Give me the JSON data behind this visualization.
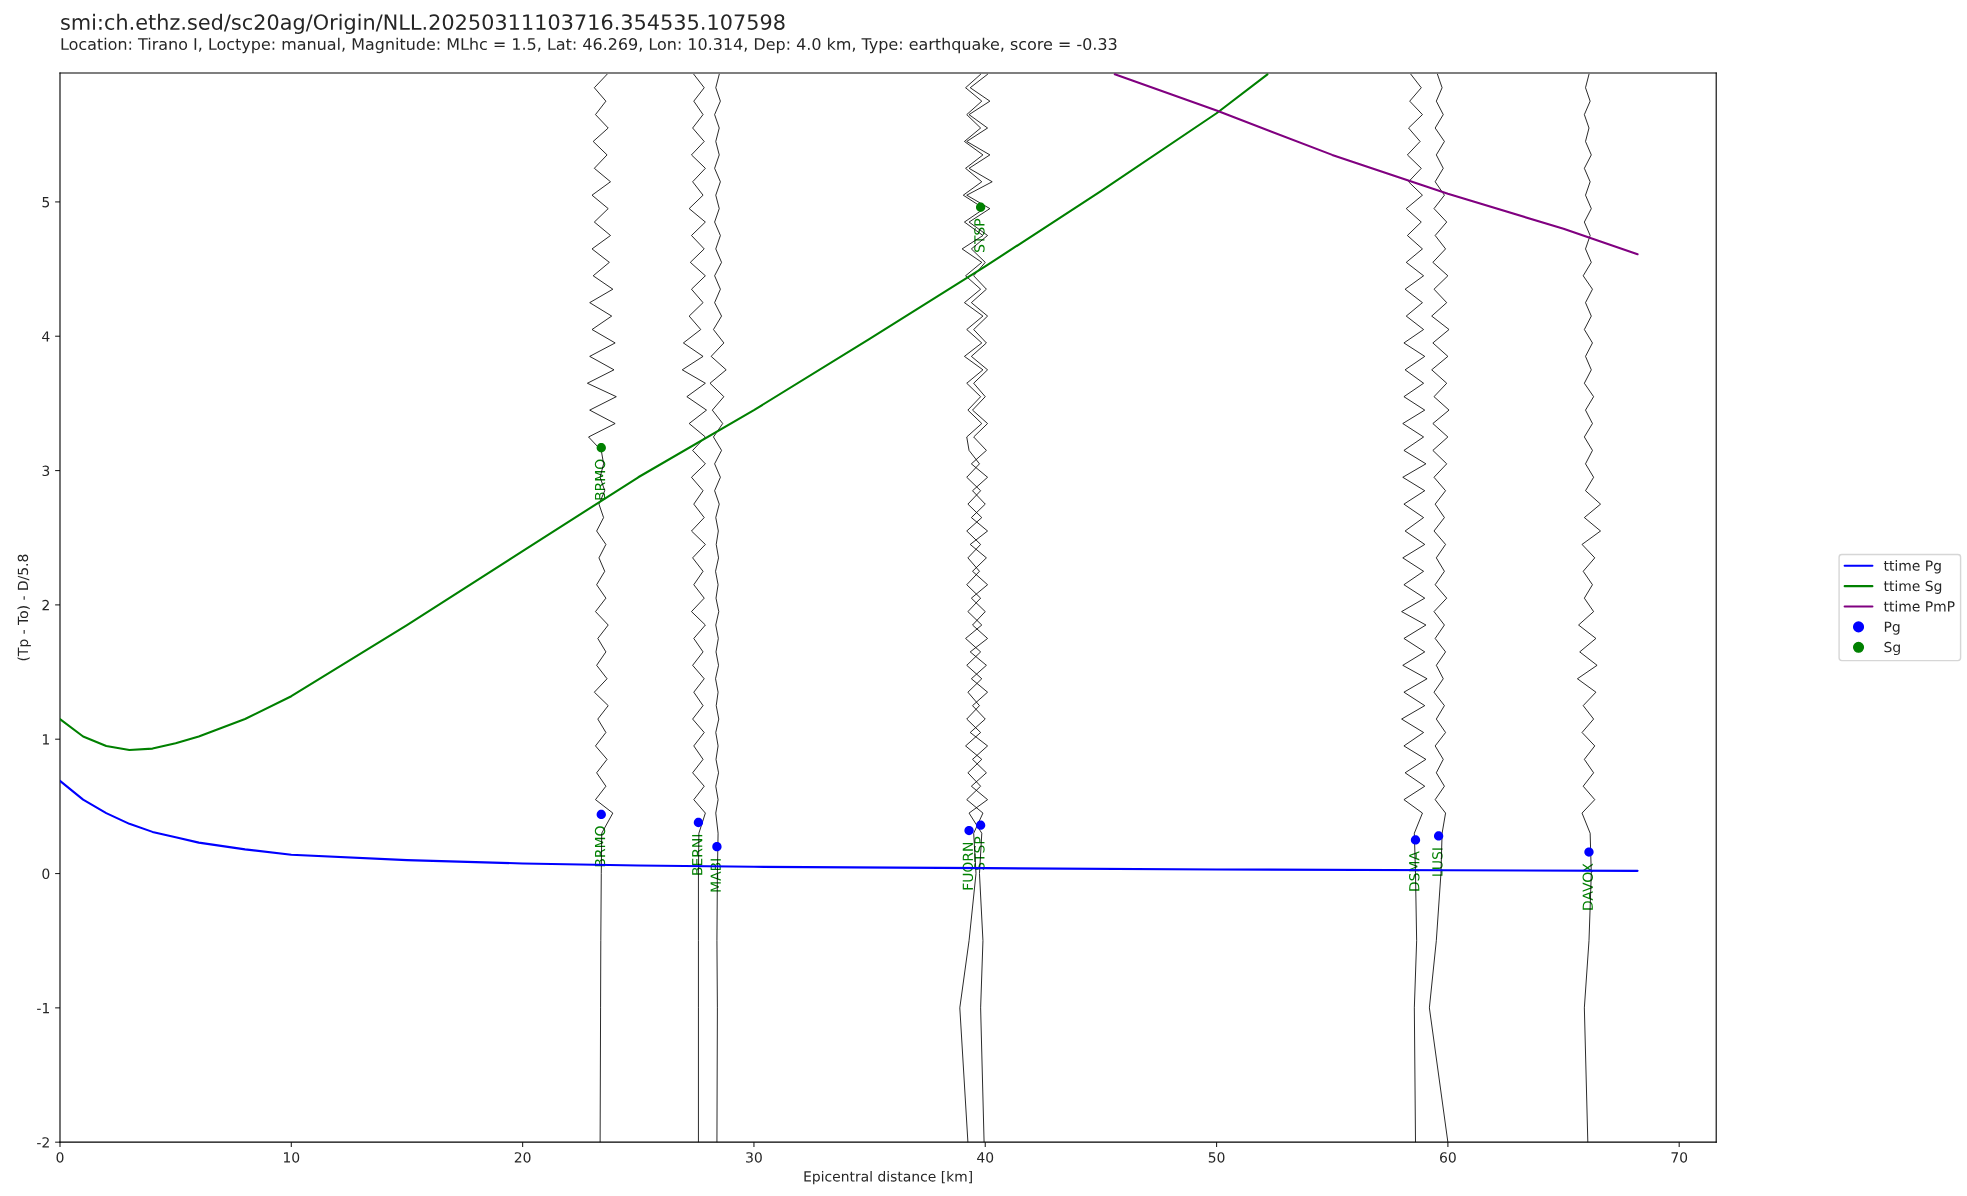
{
  "chart_data": {
    "type": "line",
    "title": "smi:ch.ethz.sed/sc20ag/Origin/NLL.20250311103716.354535.107598",
    "subtitle": "Location: Tirano I, Loctype: manual, Magnitude: MLhc = 1.5, Lat: 46.269, Lon: 10.314, Dep: 4.0 km, Type: earthquake, score = -0.33",
    "xlabel": "Epicentral distance [km]",
    "ylabel": "(Tp - To) - D/5.8",
    "xlim": [
      0,
      71.6
    ],
    "ylim": [
      -2,
      5.96
    ],
    "xticks": [
      0,
      10,
      20,
      30,
      40,
      50,
      60,
      70
    ],
    "yticks": [
      -2,
      -1,
      0,
      1,
      2,
      3,
      4,
      5
    ],
    "legend": "right",
    "grid": false,
    "series": [
      {
        "type": "line",
        "color": "#000000",
        "x": [
          23.35,
          23.37,
          23.38,
          23.4,
          23.42,
          23.9,
          23.15,
          23.6,
          23.2,
          23.65,
          23.15,
          23.6,
          23.25,
          23.7,
          23.1,
          23.65,
          23.2,
          23.6,
          23.25,
          23.7,
          23.15,
          23.6,
          23.2,
          23.55,
          23.3,
          23.6,
          23.2,
          23.5,
          23.3,
          23.55,
          23.35,
          23.5,
          23.4,
          22.85,
          24.0,
          22.9,
          24.05,
          22.8,
          23.95,
          22.9,
          24.0,
          23.0,
          23.85,
          22.9,
          23.9,
          23.05,
          23.75,
          23.0,
          23.8,
          23.1,
          23.7,
          23.0,
          23.8,
          23.1,
          23.65,
          23.05,
          23.7,
          23.15,
          23.6,
          23.1,
          23.65
        ],
        "values": [
          -2,
          -1,
          -0.5,
          0,
          0.3,
          0.45,
          0.55,
          0.65,
          0.75,
          0.85,
          0.95,
          1.05,
          1.15,
          1.25,
          1.35,
          1.45,
          1.55,
          1.65,
          1.75,
          1.85,
          1.95,
          2.05,
          2.15,
          2.25,
          2.35,
          2.45,
          2.55,
          2.65,
          2.75,
          2.85,
          2.95,
          3.05,
          3.15,
          3.25,
          3.35,
          3.45,
          3.55,
          3.65,
          3.75,
          3.85,
          3.95,
          4.05,
          4.15,
          4.25,
          4.35,
          4.45,
          4.55,
          4.65,
          4.75,
          4.85,
          4.95,
          5.05,
          5.15,
          5.25,
          5.35,
          5.45,
          5.55,
          5.65,
          5.75,
          5.85,
          5.95
        ]
      },
      {
        "type": "line",
        "color": "#000000",
        "x": [
          27.6,
          27.6,
          27.6,
          27.6,
          27.62,
          27.9,
          27.4,
          27.85,
          27.35,
          27.8,
          27.4,
          27.85,
          27.35,
          27.8,
          27.4,
          27.85,
          27.35,
          27.8,
          27.4,
          27.9,
          27.3,
          27.85,
          27.4,
          27.8,
          27.35,
          27.9,
          27.3,
          27.85,
          27.4,
          27.8,
          27.3,
          27.9,
          27.35,
          27.9,
          27.2,
          27.95,
          27.1,
          27.9,
          26.9,
          27.8,
          26.95,
          27.7,
          27.2,
          27.8,
          27.3,
          27.9,
          27.25,
          27.85,
          27.3,
          27.9,
          27.2,
          27.8,
          27.35,
          27.9,
          27.3,
          27.85,
          27.35,
          27.8,
          27.4,
          27.85,
          27.4
        ],
        "values": [
          -2,
          -1,
          -0.5,
          0,
          0.3,
          0.45,
          0.55,
          0.65,
          0.75,
          0.85,
          0.95,
          1.05,
          1.15,
          1.25,
          1.35,
          1.45,
          1.55,
          1.65,
          1.75,
          1.85,
          1.95,
          2.05,
          2.15,
          2.25,
          2.35,
          2.45,
          2.55,
          2.65,
          2.75,
          2.85,
          2.95,
          3.05,
          3.15,
          3.25,
          3.35,
          3.45,
          3.55,
          3.65,
          3.75,
          3.85,
          3.95,
          4.05,
          4.15,
          4.25,
          4.35,
          4.45,
          4.55,
          4.65,
          4.75,
          4.85,
          4.95,
          5.05,
          5.15,
          5.25,
          5.35,
          5.45,
          5.55,
          5.65,
          5.75,
          5.85,
          5.95
        ]
      },
      {
        "type": "line",
        "color": "#000000",
        "x": [
          28.4,
          28.42,
          28.4,
          28.42,
          28.45,
          28.35,
          28.45,
          28.35,
          28.47,
          28.36,
          28.45,
          28.35,
          28.48,
          28.37,
          28.45,
          28.34,
          28.47,
          28.36,
          28.46,
          28.35,
          28.48,
          28.36,
          28.45,
          28.34,
          28.47,
          28.37,
          28.46,
          28.35,
          28.5,
          28.3,
          28.55,
          28.3,
          28.6,
          28.25,
          28.65,
          28.2,
          28.7,
          28.1,
          28.8,
          28.15,
          28.7,
          28.25,
          28.6,
          28.3,
          28.55,
          28.3,
          28.6,
          28.35,
          28.55,
          28.3,
          28.5,
          28.35,
          28.55,
          28.3,
          28.5,
          28.35,
          28.5,
          28.3,
          28.55,
          28.35,
          28.5
        ],
        "values": [
          -2,
          -1,
          -0.5,
          0,
          0.3,
          0.45,
          0.55,
          0.65,
          0.75,
          0.85,
          0.95,
          1.05,
          1.15,
          1.25,
          1.35,
          1.45,
          1.55,
          1.65,
          1.75,
          1.85,
          1.95,
          2.05,
          2.15,
          2.25,
          2.35,
          2.45,
          2.55,
          2.65,
          2.75,
          2.85,
          2.95,
          3.05,
          3.15,
          3.25,
          3.35,
          3.45,
          3.55,
          3.65,
          3.75,
          3.85,
          3.95,
          4.05,
          4.15,
          4.25,
          4.35,
          4.45,
          4.55,
          4.65,
          4.75,
          4.85,
          4.95,
          5.05,
          5.15,
          5.25,
          5.35,
          5.45,
          5.55,
          5.65,
          5.75,
          5.85,
          5.95
        ]
      },
      {
        "type": "line",
        "color": "#000000",
        "x": [
          39.25,
          38.9,
          39.3,
          39.6,
          39.5,
          39.9,
          39.2,
          39.8,
          39.25,
          39.85,
          39.15,
          39.8,
          39.2,
          39.75,
          39.25,
          39.85,
          39.2,
          39.8,
          39.15,
          39.85,
          39.25,
          39.8,
          39.2,
          39.75,
          39.25,
          39.8,
          39.2,
          39.85,
          39.25,
          39.8,
          39.2,
          39.75,
          39.3,
          39.2,
          39.85,
          39.25,
          39.8,
          39.2,
          39.9,
          39.1,
          39.85,
          39.2,
          39.9,
          39.1,
          39.8,
          39.15,
          39.85,
          39.0,
          39.9,
          39.1,
          39.95,
          39.05,
          39.85,
          39.15,
          39.9,
          39.1,
          39.8,
          39.2,
          39.85,
          39.15,
          39.8
        ],
        "values": [
          -2,
          -1,
          -0.5,
          0,
          0.3,
          0.45,
          0.55,
          0.65,
          0.75,
          0.85,
          0.95,
          1.05,
          1.15,
          1.25,
          1.35,
          1.45,
          1.55,
          1.65,
          1.75,
          1.85,
          1.95,
          2.05,
          2.15,
          2.25,
          2.35,
          2.45,
          2.55,
          2.65,
          2.75,
          2.85,
          2.95,
          3.05,
          3.15,
          3.25,
          3.35,
          3.45,
          3.55,
          3.65,
          3.75,
          3.85,
          3.95,
          4.05,
          4.15,
          4.25,
          4.35,
          4.45,
          4.55,
          4.65,
          4.75,
          4.85,
          4.95,
          5.05,
          5.15,
          5.25,
          5.35,
          5.45,
          5.55,
          5.65,
          5.75,
          5.85,
          5.95
        ]
      },
      {
        "type": "line",
        "color": "#000000",
        "x": [
          39.95,
          39.8,
          39.9,
          39.75,
          39.85,
          39.3,
          40.1,
          39.4,
          40.05,
          39.45,
          40.1,
          39.35,
          40.0,
          39.45,
          40.1,
          39.4,
          40.05,
          39.35,
          40.1,
          39.45,
          40.0,
          39.4,
          40.1,
          39.45,
          40.05,
          39.35,
          40.1,
          39.4,
          40.0,
          39.45,
          40.1,
          39.4,
          40.05,
          39.5,
          40.1,
          39.45,
          40.0,
          39.5,
          40.1,
          39.4,
          40.05,
          39.5,
          40.1,
          39.4,
          40.05,
          39.5,
          40.0,
          39.4,
          40.1,
          39.3,
          40.2,
          39.2,
          40.3,
          39.3,
          40.2,
          39.2,
          40.1,
          39.3,
          40.2,
          39.35,
          40.1
        ],
        "values": [
          -2,
          -1,
          -0.5,
          0,
          0.3,
          0.45,
          0.55,
          0.65,
          0.75,
          0.85,
          0.95,
          1.05,
          1.15,
          1.25,
          1.35,
          1.45,
          1.55,
          1.65,
          1.75,
          1.85,
          1.95,
          2.05,
          2.15,
          2.25,
          2.35,
          2.45,
          2.55,
          2.65,
          2.75,
          2.85,
          2.95,
          3.05,
          3.15,
          3.25,
          3.35,
          3.45,
          3.55,
          3.65,
          3.75,
          3.85,
          3.95,
          4.05,
          4.15,
          4.25,
          4.35,
          4.45,
          4.55,
          4.65,
          4.75,
          4.85,
          4.95,
          5.05,
          5.15,
          5.25,
          5.35,
          5.45,
          5.55,
          5.65,
          5.75,
          5.85,
          5.95
        ]
      },
      {
        "type": "line",
        "color": "#000000",
        "x": [
          58.6,
          58.55,
          58.65,
          58.6,
          58.55,
          58.9,
          58.1,
          59.0,
          58.15,
          59.05,
          58.1,
          58.95,
          58.0,
          59.0,
          58.1,
          59.1,
          58.05,
          59.0,
          58.1,
          59.05,
          58.0,
          59.0,
          58.1,
          58.95,
          58.05,
          59.0,
          58.15,
          58.95,
          58.1,
          59.0,
          58.05,
          59.05,
          58.1,
          58.95,
          58.05,
          59.0,
          58.1,
          58.95,
          58.15,
          59.0,
          58.1,
          58.95,
          58.2,
          58.9,
          58.15,
          58.95,
          58.2,
          58.9,
          58.25,
          58.85,
          58.2,
          58.9,
          58.3,
          58.85,
          58.25,
          58.8,
          58.3,
          58.9,
          58.35,
          58.85,
          58.4
        ],
        "values": [
          -2,
          -1,
          -0.5,
          0,
          0.3,
          0.45,
          0.55,
          0.65,
          0.75,
          0.85,
          0.95,
          1.05,
          1.15,
          1.25,
          1.35,
          1.45,
          1.55,
          1.65,
          1.75,
          1.85,
          1.95,
          2.05,
          2.15,
          2.25,
          2.35,
          2.45,
          2.55,
          2.65,
          2.75,
          2.85,
          2.95,
          3.05,
          3.15,
          3.25,
          3.35,
          3.45,
          3.55,
          3.65,
          3.75,
          3.85,
          3.95,
          4.05,
          4.15,
          4.25,
          4.35,
          4.45,
          4.55,
          4.65,
          4.75,
          4.85,
          4.95,
          5.05,
          5.15,
          5.25,
          5.35,
          5.45,
          5.55,
          5.65,
          5.75,
          5.85,
          5.95
        ]
      },
      {
        "type": "line",
        "color": "#000000",
        "x": [
          60.0,
          59.2,
          59.5,
          59.7,
          59.75,
          59.9,
          59.45,
          59.85,
          59.5,
          59.8,
          59.45,
          59.9,
          59.5,
          59.85,
          59.4,
          59.8,
          59.5,
          59.9,
          59.45,
          59.85,
          59.4,
          59.95,
          59.45,
          59.85,
          59.5,
          59.9,
          59.4,
          59.85,
          59.45,
          59.9,
          59.4,
          59.95,
          59.35,
          60.0,
          59.35,
          60.05,
          59.4,
          59.95,
          59.3,
          60.0,
          59.35,
          60.05,
          59.3,
          59.95,
          59.4,
          60.0,
          59.35,
          59.9,
          59.45,
          59.95,
          59.4,
          59.85,
          59.45,
          59.8,
          59.5,
          59.85,
          59.45,
          59.8,
          59.5,
          59.75,
          59.55
        ],
        "values": [
          -2,
          -1,
          -0.5,
          0,
          0.3,
          0.45,
          0.55,
          0.65,
          0.75,
          0.85,
          0.95,
          1.05,
          1.15,
          1.25,
          1.35,
          1.45,
          1.55,
          1.65,
          1.75,
          1.85,
          1.95,
          2.05,
          2.15,
          2.25,
          2.35,
          2.45,
          2.55,
          2.65,
          2.75,
          2.85,
          2.95,
          3.05,
          3.15,
          3.25,
          3.35,
          3.45,
          3.55,
          3.65,
          3.75,
          3.85,
          3.95,
          4.05,
          4.15,
          4.25,
          4.35,
          4.45,
          4.55,
          4.65,
          4.75,
          4.85,
          4.95,
          5.05,
          5.15,
          5.25,
          5.35,
          5.45,
          5.55,
          5.65,
          5.75,
          5.85,
          5.95
        ]
      },
      {
        "type": "line",
        "color": "#000000",
        "x": [
          66.05,
          65.9,
          66.1,
          66.2,
          66.15,
          65.8,
          66.35,
          65.85,
          66.3,
          65.9,
          66.35,
          65.8,
          66.3,
          65.85,
          66.4,
          65.6,
          66.45,
          65.7,
          66.4,
          65.65,
          66.3,
          65.9,
          66.25,
          65.85,
          66.35,
          65.8,
          66.6,
          65.9,
          66.6,
          65.95,
          66.3,
          65.95,
          66.25,
          65.9,
          66.25,
          65.95,
          66.3,
          65.9,
          66.2,
          65.95,
          66.25,
          65.9,
          66.2,
          65.95,
          66.25,
          65.85,
          66.2,
          65.95,
          66.15,
          65.9,
          66.2,
          65.95,
          66.15,
          65.9,
          66.2,
          65.95,
          66.1,
          65.9,
          66.15,
          65.95,
          66.1
        ],
        "values": [
          -2,
          -1,
          -0.5,
          0,
          0.3,
          0.45,
          0.55,
          0.65,
          0.75,
          0.85,
          0.95,
          1.05,
          1.15,
          1.25,
          1.35,
          1.45,
          1.55,
          1.65,
          1.75,
          1.85,
          1.95,
          2.05,
          2.15,
          2.25,
          2.35,
          2.45,
          2.55,
          2.65,
          2.75,
          2.85,
          2.95,
          3.05,
          3.15,
          3.25,
          3.35,
          3.45,
          3.55,
          3.65,
          3.75,
          3.85,
          3.95,
          4.05,
          4.15,
          4.25,
          4.35,
          4.45,
          4.55,
          4.65,
          4.75,
          4.85,
          4.95,
          5.05,
          5.15,
          5.25,
          5.35,
          5.45,
          5.55,
          5.65,
          5.75,
          5.85,
          5.95
        ]
      },
      {
        "name": "ttime Pg",
        "color": "#0000ff",
        "x": [
          0,
          1,
          2,
          3,
          4,
          5,
          6,
          8,
          10,
          15,
          20,
          25,
          30,
          40,
          50,
          60,
          68.2
        ],
        "values": [
          0.69,
          0.55,
          0.45,
          0.37,
          0.31,
          0.27,
          0.23,
          0.18,
          0.14,
          0.1,
          0.075,
          0.06,
          0.05,
          0.04,
          0.03,
          0.025,
          0.02
        ]
      },
      {
        "name": "ttime Sg",
        "color": "#008000",
        "x": [
          0,
          1,
          2,
          3,
          4,
          5,
          6,
          8,
          10,
          15,
          20,
          25,
          30,
          35,
          40,
          45,
          50,
          52.2
        ],
        "values": [
          1.15,
          1.02,
          0.95,
          0.92,
          0.93,
          0.97,
          1.02,
          1.15,
          1.32,
          1.85,
          2.4,
          2.95,
          3.45,
          3.98,
          4.52,
          5.08,
          5.66,
          5.95
        ]
      },
      {
        "name": "ttime PmP",
        "color": "#800080",
        "x": [
          45.6,
          50,
          55,
          60,
          65,
          68.2
        ],
        "values": [
          5.95,
          5.68,
          5.35,
          5.06,
          4.8,
          4.61
        ]
      },
      {
        "type": "scatter",
        "name": "Pg",
        "color": "#0000ff",
        "marker": "circle",
        "x": [
          23.4,
          27.6,
          28.4,
          39.3,
          39.8,
          58.6,
          59.6,
          66.1
        ],
        "values": [
          0.44,
          0.38,
          0.2,
          0.32,
          0.36,
          0.25,
          0.28,
          0.16
        ]
      },
      {
        "type": "scatter",
        "name": "Sg",
        "color": "#008000",
        "marker": "circle",
        "x": [
          23.4,
          39.8
        ],
        "values": [
          3.17,
          4.96
        ]
      }
    ],
    "annotations": [
      {
        "text": "BRMO",
        "x": 23.4,
        "y": 0.44
      },
      {
        "text": "BERNI",
        "x": 27.6,
        "y": 0.38
      },
      {
        "text": "MABI",
        "x": 28.4,
        "y": 0.2
      },
      {
        "text": "FUORN",
        "x": 39.3,
        "y": 0.32
      },
      {
        "text": "STSP",
        "x": 39.8,
        "y": 0.36
      },
      {
        "text": "DSMA",
        "x": 58.6,
        "y": 0.25
      },
      {
        "text": "LUSI",
        "x": 59.6,
        "y": 0.28
      },
      {
        "text": "DAVOX",
        "x": 66.1,
        "y": 0.16
      },
      {
        "text": "BRMO",
        "x": 23.4,
        "y": 3.17
      },
      {
        "text": "STSP",
        "x": 39.8,
        "y": 4.96
      }
    ]
  }
}
